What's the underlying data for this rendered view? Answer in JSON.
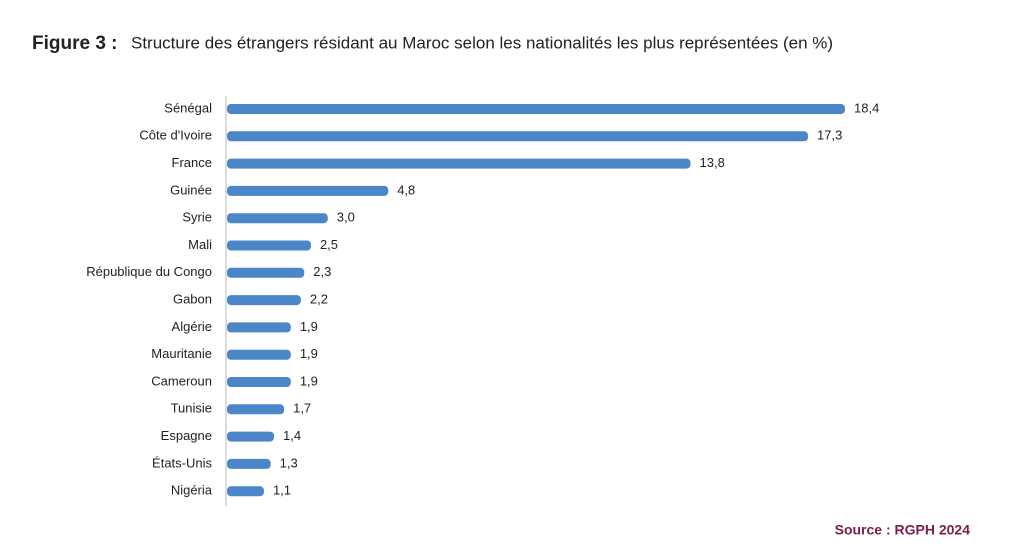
{
  "chart_data": {
    "type": "bar",
    "orientation": "horizontal",
    "figure_label": "Figure 3 :",
    "title": "Structure des étrangers résidant au Maroc selon les nationalités les plus représentées (en %)",
    "categories": [
      "Sénégal",
      "Côte d'Ivoire",
      "France",
      "Guinée",
      "Syrie",
      "Mali",
      "République du Congo",
      "Gabon",
      "Algérie",
      "Mauritanie",
      "Cameroun",
      "Tunisie",
      "Espagne",
      "États-Unis",
      "Nigéria"
    ],
    "values": [
      18.4,
      17.3,
      13.8,
      4.8,
      3.0,
      2.5,
      2.3,
      2.2,
      1.9,
      1.9,
      1.9,
      1.7,
      1.4,
      1.3,
      1.1
    ],
    "value_labels": [
      "18,4",
      "17,3",
      "13,8",
      "4,8",
      "3,0",
      "2,5",
      "2,3",
      "2,2",
      "1,9",
      "1,9",
      "1,9",
      "1,7",
      "1,4",
      "1,3",
      "1,1"
    ],
    "color": "#4a86c8",
    "source": "Source : RGPH 2024"
  }
}
